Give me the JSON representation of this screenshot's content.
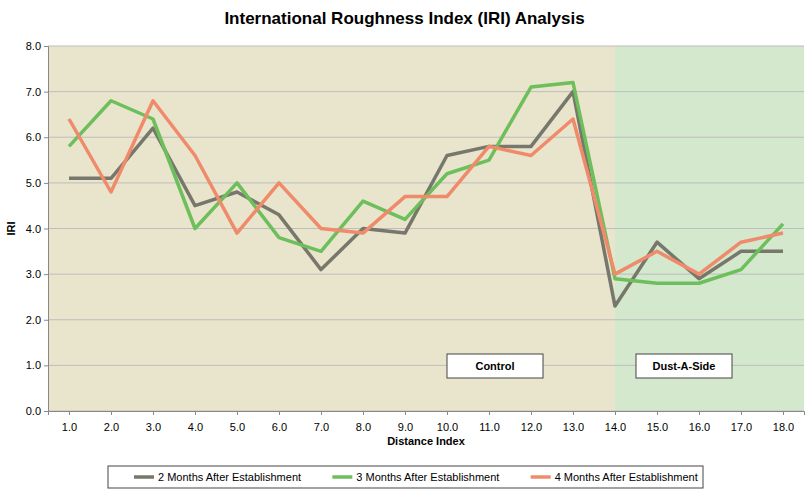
{
  "chart_data": {
    "type": "line",
    "title": "International Roughness Index (IRI) Analysis",
    "x_label": "Distance Index",
    "y_label": "IRI",
    "categories": [
      "1.0",
      "2.0",
      "3.0",
      "4.0",
      "5.0",
      "6.0",
      "7.0",
      "8.0",
      "9.0",
      "10.0",
      "11.0",
      "12.0",
      "13.0",
      "14.0",
      "15.0",
      "16.0",
      "17.0",
      "18.0"
    ],
    "series": [
      {
        "name": "2 Months After Establishment",
        "color": "#77776b",
        "values": [
          5.1,
          5.1,
          6.2,
          4.5,
          4.8,
          4.3,
          3.1,
          4.0,
          3.9,
          5.6,
          5.8,
          5.8,
          7.0,
          2.3,
          3.7,
          2.9,
          3.5,
          3.5
        ]
      },
      {
        "name": "3 Months After Establishment",
        "color": "#6cbf5a",
        "values": [
          5.8,
          6.8,
          6.4,
          4.0,
          5.0,
          3.8,
          3.5,
          4.6,
          4.2,
          5.2,
          5.5,
          7.1,
          7.2,
          2.9,
          2.8,
          2.8,
          3.1,
          4.1
        ]
      },
      {
        "name": "4 Months After Establishment",
        "color": "#ef8b6b",
        "values": [
          6.4,
          4.8,
          6.8,
          5.6,
          3.9,
          5.0,
          4.0,
          3.9,
          4.7,
          4.7,
          5.8,
          5.6,
          6.4,
          3.0,
          3.5,
          3.0,
          3.7,
          3.9
        ]
      }
    ],
    "annotations": [
      {
        "text": "Control",
        "from": "1.0",
        "to": "14.0",
        "color": "#e9e4cc"
      },
      {
        "text": "Dust-A-Side",
        "from": "14.0",
        "to": "18.0",
        "color": "#d3e8cd"
      }
    ],
    "ylim": [
      0,
      8
    ],
    "yticks": [
      {
        "value": 0,
        "label": "0.0"
      },
      {
        "value": 1,
        "label": "1.0"
      },
      {
        "value": 2,
        "label": "2.0"
      },
      {
        "value": 3,
        "label": "3.0"
      },
      {
        "value": 4,
        "label": "4.0"
      },
      {
        "value": 5,
        "label": "5.0"
      },
      {
        "value": 6,
        "label": "6.0"
      },
      {
        "value": 7,
        "label": "7.0"
      },
      {
        "value": 8,
        "label": "8.0"
      }
    ],
    "grid": true,
    "legend": "bottom"
  }
}
